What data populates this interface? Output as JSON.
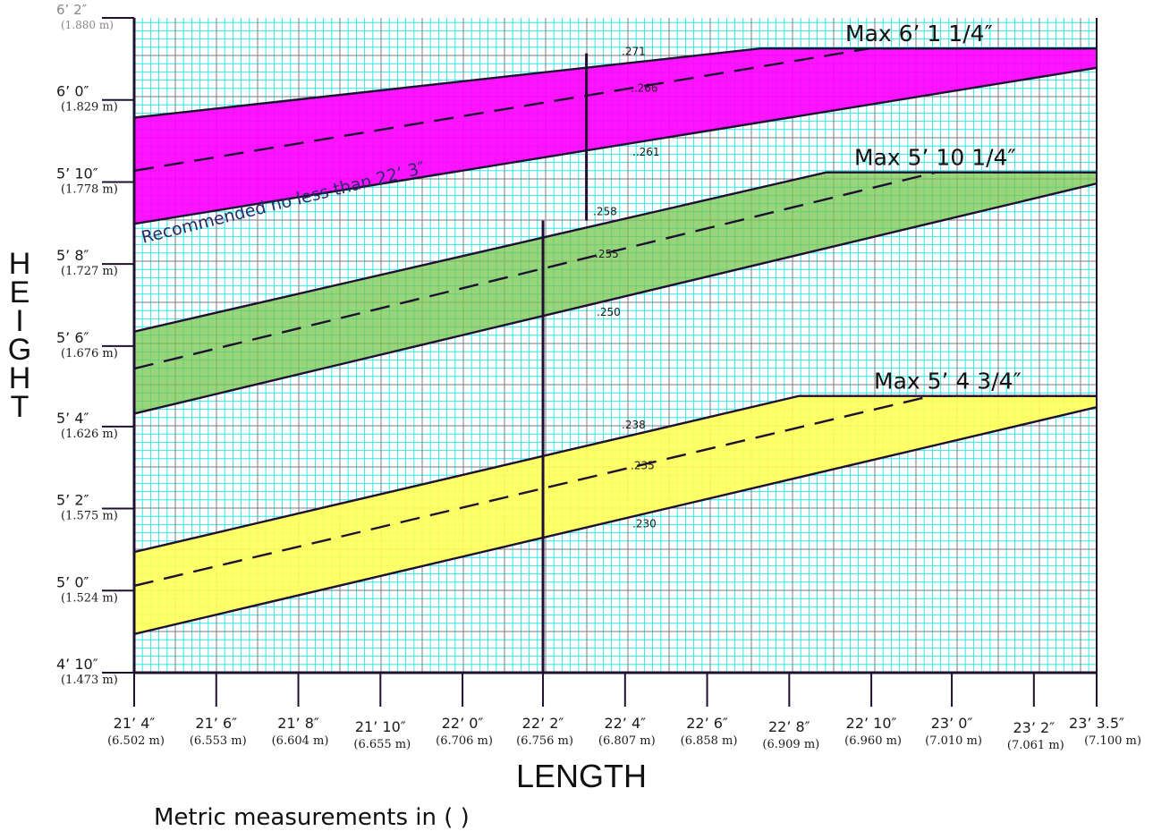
{
  "chart_data": {
    "type": "line",
    "x_ticks": [
      {
        "ft": "21’ 4″",
        "m": "(6.502 m)",
        "value": 6.502
      },
      {
        "ft": "21’ 6″",
        "m": "(6.553 m)",
        "value": 6.553
      },
      {
        "ft": "21’ 8″",
        "m": "(6.604 m)",
        "value": 6.604
      },
      {
        "ft": "21’ 10″",
        "m": "(6.655 m)",
        "value": 6.655
      },
      {
        "ft": "22’ 0″",
        "m": "(6.706 m)",
        "value": 6.706
      },
      {
        "ft": "22’ 2″",
        "m": "(6.756 m)",
        "value": 6.756
      },
      {
        "ft": "22’ 4″",
        "m": "(6.807 m)",
        "value": 6.807
      },
      {
        "ft": "22’ 6″",
        "m": "(6.858 m)",
        "value": 6.858
      },
      {
        "ft": "22’ 8″",
        "m": "(6.909 m)",
        "value": 6.909
      },
      {
        "ft": "22’ 10″",
        "m": "(6.960 m)",
        "value": 6.96
      },
      {
        "ft": "23’ 0″",
        "m": "(7.010 m)",
        "value": 7.01
      },
      {
        "ft": "23’ 2″",
        "m": "(7.061 m)",
        "value": 7.061
      },
      {
        "ft": "23’ 3.5″",
        "m": "(7.100 m)",
        "value": 7.1
      }
    ],
    "y_ticks": [
      {
        "ft": "4’ 10″",
        "m": "(1.473 m)",
        "value": 1.473
      },
      {
        "ft": "5’ 0″",
        "m": "(1.524 m)",
        "value": 1.524
      },
      {
        "ft": "5’ 2″",
        "m": "(1.575 m)",
        "value": 1.575
      },
      {
        "ft": "5’ 4″",
        "m": "(1.626 m)",
        "value": 1.626
      },
      {
        "ft": "5’ 6″",
        "m": "(1.676 m)",
        "value": 1.676
      },
      {
        "ft": "5’ 8″",
        "m": "(1.727 m)",
        "value": 1.727
      },
      {
        "ft": "5’ 10″",
        "m": "(1.778 m)",
        "value": 1.778
      },
      {
        "ft": "6’ 0″",
        "m": "(1.829 m)",
        "value": 1.829
      },
      {
        "ft": "6’ 2″",
        "m": "(1.880 m)",
        "value": 1.88,
        "muted": true
      }
    ],
    "xlabel": "LENGTH",
    "ylabel": "HEIGHT",
    "xlim": [
      6.502,
      7.1
    ],
    "ylim": [
      1.473,
      1.88
    ],
    "grid": true,
    "bands": [
      {
        "color": "#ff00ff",
        "max_label": "Max 6’ 1 1/4″",
        "max_value": 1.861,
        "lines": [
          {
            "label": ".271",
            "style": "solid",
            "points": [
              [
                6.502,
                1.818
              ],
              [
                6.891,
                1.861
              ],
              [
                7.1,
                1.861
              ]
            ]
          },
          {
            "label": "..266",
            "style": "dashed",
            "points": [
              [
                6.502,
                1.785
              ],
              [
                6.959,
                1.861
              ],
              [
                7.1,
                1.861
              ]
            ]
          },
          {
            "label": "..261",
            "style": "solid",
            "points": [
              [
                6.502,
                1.752
              ],
              [
                7.1,
                1.849
              ]
            ]
          }
        ]
      },
      {
        "color": "#7ac74f",
        "max_label": "Max 5’ 10 1/4″",
        "max_value": 1.784,
        "lines": [
          {
            "label": ".258",
            "style": "solid",
            "points": [
              [
                6.502,
                1.685
              ],
              [
                6.932,
                1.784
              ],
              [
                7.1,
                1.784
              ]
            ]
          },
          {
            "label": ".255",
            "style": "dashed",
            "points": [
              [
                6.502,
                1.662
              ],
              [
                7.0,
                1.784
              ],
              [
                7.1,
                1.784
              ]
            ]
          },
          {
            "label": ".250",
            "style": "solid",
            "points": [
              [
                6.502,
                1.634
              ],
              [
                7.1,
                1.777
              ]
            ]
          }
        ]
      },
      {
        "color": "#ffff5a",
        "max_label": "Max 5’ 4 3/4″",
        "max_value": 1.645,
        "lines": [
          {
            "label": ".238",
            "style": "solid",
            "points": [
              [
                6.502,
                1.548
              ],
              [
                6.915,
                1.645
              ],
              [
                7.1,
                1.645
              ]
            ]
          },
          {
            "label": ".235",
            "style": "dashed",
            "points": [
              [
                6.502,
                1.527
              ],
              [
                6.997,
                1.645
              ],
              [
                7.1,
                1.645
              ]
            ]
          },
          {
            "label": ".230",
            "style": "solid",
            "points": [
              [
                6.502,
                1.497
              ],
              [
                7.1,
                1.638
              ]
            ]
          }
        ]
      }
    ],
    "markers": [
      {
        "x": 6.783,
        "y_from": 1.754,
        "y_to": 1.858
      },
      {
        "x": 6.756,
        "y_from": 1.473,
        "y_to": 1.754
      }
    ],
    "annotations": [
      {
        "text": "Recommended no less than 22’ 3″"
      }
    ],
    "note": "Metric measurements in ( )"
  }
}
